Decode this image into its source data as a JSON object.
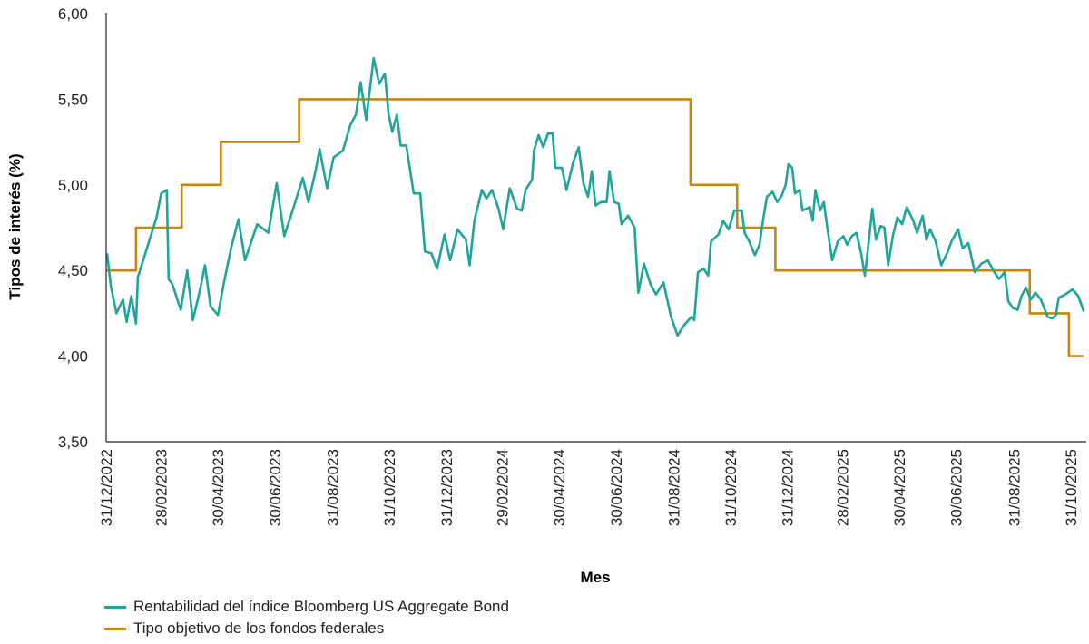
{
  "chart_data": {
    "type": "line",
    "title": "",
    "xlabel": "Mes",
    "ylabel": "Tipos de interés (%)",
    "ylim": [
      3.5,
      6.0
    ],
    "yticks": [
      "3,50",
      "4,00",
      "4,50",
      "5,00",
      "5,50",
      "6,00"
    ],
    "ytick_values": [
      3.5,
      4.0,
      4.5,
      5.0,
      5.5,
      6.0
    ],
    "xlim": [
      "2022-12-31",
      "2025-11-14"
    ],
    "xticks": [
      "31/12/2022",
      "28/02/2023",
      "30/04/2023",
      "30/06/2023",
      "31/08/2023",
      "31/10/2023",
      "31/12/2023",
      "29/02/2024",
      "30/04/2024",
      "30/06/2024",
      "31/08/2024",
      "31/10/2024",
      "31/12/2024",
      "28/02/2025",
      "30/04/2025",
      "30/06/2025",
      "31/08/2025",
      "31/10/2025"
    ],
    "xtick_dates": [
      "2022-12-31",
      "2023-02-28",
      "2023-04-30",
      "2023-06-30",
      "2023-08-31",
      "2023-10-31",
      "2023-12-31",
      "2024-02-29",
      "2024-04-30",
      "2024-06-30",
      "2024-08-31",
      "2024-10-31",
      "2024-12-31",
      "2025-02-28",
      "2025-04-30",
      "2025-06-30",
      "2025-08-31",
      "2025-10-31"
    ],
    "grid": false,
    "legend_position": "bottom-left",
    "series": [
      {
        "name": "Rentabilidad del índice Bloomberg US Aggregate Bond",
        "color": "#1fa59a",
        "step": false,
        "points": [
          [
            "2023-01-01",
            4.6
          ],
          [
            "2023-01-05",
            4.41
          ],
          [
            "2023-01-11",
            4.25
          ],
          [
            "2023-01-18",
            4.33
          ],
          [
            "2023-01-22",
            4.2
          ],
          [
            "2023-01-27",
            4.35
          ],
          [
            "2023-02-01",
            4.19
          ],
          [
            "2023-02-03",
            4.46
          ],
          [
            "2023-02-23",
            4.81
          ],
          [
            "2023-02-28",
            4.95
          ],
          [
            "2023-03-06",
            4.97
          ],
          [
            "2023-03-08",
            4.45
          ],
          [
            "2023-03-12",
            4.42
          ],
          [
            "2023-03-21",
            4.27
          ],
          [
            "2023-03-28",
            4.5
          ],
          [
            "2023-04-03",
            4.21
          ],
          [
            "2023-04-10",
            4.37
          ],
          [
            "2023-04-16",
            4.53
          ],
          [
            "2023-04-22",
            4.29
          ],
          [
            "2023-04-30",
            4.24
          ],
          [
            "2023-05-06",
            4.42
          ],
          [
            "2023-05-14",
            4.63
          ],
          [
            "2023-05-22",
            4.8
          ],
          [
            "2023-05-29",
            4.56
          ],
          [
            "2023-06-11",
            4.77
          ],
          [
            "2023-06-23",
            4.72
          ],
          [
            "2023-07-02",
            5.01
          ],
          [
            "2023-07-10",
            4.7
          ],
          [
            "2023-07-19",
            4.85
          ],
          [
            "2023-07-30",
            5.04
          ],
          [
            "2023-08-05",
            4.9
          ],
          [
            "2023-08-13",
            5.09
          ],
          [
            "2023-08-17",
            5.21
          ],
          [
            "2023-08-25",
            4.98
          ],
          [
            "2023-09-01",
            5.16
          ],
          [
            "2023-09-11",
            5.2
          ],
          [
            "2023-09-19",
            5.35
          ],
          [
            "2023-09-25",
            5.41
          ],
          [
            "2023-09-30",
            5.6
          ],
          [
            "2023-10-06",
            5.38
          ],
          [
            "2023-10-14",
            5.74
          ],
          [
            "2023-10-20",
            5.59
          ],
          [
            "2023-10-26",
            5.65
          ],
          [
            "2023-10-30",
            5.41
          ],
          [
            "2023-11-03",
            5.31
          ],
          [
            "2023-11-08",
            5.41
          ],
          [
            "2023-11-12",
            5.23
          ],
          [
            "2023-11-18",
            5.23
          ],
          [
            "2023-11-26",
            4.95
          ],
          [
            "2023-12-03",
            4.95
          ],
          [
            "2023-12-08",
            4.61
          ],
          [
            "2023-12-15",
            4.6
          ],
          [
            "2023-12-21",
            4.51
          ],
          [
            "2023-12-29",
            4.71
          ],
          [
            "2024-01-04",
            4.56
          ],
          [
            "2024-01-12",
            4.74
          ],
          [
            "2024-01-21",
            4.68
          ],
          [
            "2024-01-25",
            4.53
          ],
          [
            "2024-01-30",
            4.79
          ],
          [
            "2024-02-07",
            4.97
          ],
          [
            "2024-02-12",
            4.92
          ],
          [
            "2024-02-18",
            4.97
          ],
          [
            "2024-02-25",
            4.86
          ],
          [
            "2024-03-01",
            4.74
          ],
          [
            "2024-03-08",
            4.98
          ],
          [
            "2024-03-16",
            4.86
          ],
          [
            "2024-03-21",
            4.85
          ],
          [
            "2024-03-25",
            4.97
          ],
          [
            "2024-04-01",
            5.03
          ],
          [
            "2024-04-03",
            5.2
          ],
          [
            "2024-04-08",
            5.29
          ],
          [
            "2024-04-13",
            5.22
          ],
          [
            "2024-04-18",
            5.3
          ],
          [
            "2024-04-23",
            5.3
          ],
          [
            "2024-04-26",
            5.1
          ],
          [
            "2024-05-03",
            5.1
          ],
          [
            "2024-05-08",
            4.97
          ],
          [
            "2024-05-15",
            5.13
          ],
          [
            "2024-05-21",
            5.22
          ],
          [
            "2024-05-26",
            5.01
          ],
          [
            "2024-05-31",
            4.93
          ],
          [
            "2024-06-04",
            5.08
          ],
          [
            "2024-06-08",
            4.88
          ],
          [
            "2024-06-14",
            4.9
          ],
          [
            "2024-06-20",
            4.9
          ],
          [
            "2024-06-23",
            5.08
          ],
          [
            "2024-06-28",
            4.9
          ],
          [
            "2024-07-03",
            4.89
          ],
          [
            "2024-07-06",
            4.77
          ],
          [
            "2024-07-13",
            4.82
          ],
          [
            "2024-07-20",
            4.75
          ],
          [
            "2024-07-24",
            4.37
          ],
          [
            "2024-07-30",
            4.54
          ],
          [
            "2024-08-06",
            4.42
          ],
          [
            "2024-08-12",
            4.36
          ],
          [
            "2024-08-20",
            4.43
          ],
          [
            "2024-08-28",
            4.23
          ],
          [
            "2024-09-04",
            4.12
          ],
          [
            "2024-09-11",
            4.18
          ],
          [
            "2024-09-19",
            4.23
          ],
          [
            "2024-09-22",
            4.21
          ],
          [
            "2024-09-26",
            4.49
          ],
          [
            "2024-10-02",
            4.51
          ],
          [
            "2024-10-07",
            4.47
          ],
          [
            "2024-10-10",
            4.67
          ],
          [
            "2024-10-18",
            4.71
          ],
          [
            "2024-10-23",
            4.79
          ],
          [
            "2024-10-29",
            4.74
          ],
          [
            "2024-11-04",
            4.85
          ],
          [
            "2024-11-12",
            4.85
          ],
          [
            "2024-11-15",
            4.72
          ],
          [
            "2024-11-20",
            4.67
          ],
          [
            "2024-11-26",
            4.59
          ],
          [
            "2024-12-01",
            4.65
          ],
          [
            "2024-12-05",
            4.8
          ],
          [
            "2024-12-09",
            4.93
          ],
          [
            "2024-12-15",
            4.96
          ],
          [
            "2024-12-20",
            4.9
          ],
          [
            "2024-12-25",
            4.94
          ],
          [
            "2024-12-29",
            5.0
          ],
          [
            "2025-01-01",
            5.12
          ],
          [
            "2025-01-05",
            5.1
          ],
          [
            "2025-01-08",
            4.95
          ],
          [
            "2025-01-13",
            4.97
          ],
          [
            "2025-01-16",
            4.85
          ],
          [
            "2025-01-24",
            4.87
          ],
          [
            "2025-01-27",
            4.79
          ],
          [
            "2025-01-30",
            4.97
          ],
          [
            "2025-02-04",
            4.85
          ],
          [
            "2025-02-08",
            4.9
          ],
          [
            "2025-02-12",
            4.74
          ],
          [
            "2025-02-17",
            4.56
          ],
          [
            "2025-02-23",
            4.67
          ],
          [
            "2025-03-01",
            4.7
          ],
          [
            "2025-03-05",
            4.65
          ],
          [
            "2025-03-10",
            4.7
          ],
          [
            "2025-03-15",
            4.72
          ],
          [
            "2025-03-20",
            4.6
          ],
          [
            "2025-03-24",
            4.47
          ],
          [
            "2025-03-27",
            4.61
          ],
          [
            "2025-04-01",
            4.86
          ],
          [
            "2025-04-05",
            4.68
          ],
          [
            "2025-04-10",
            4.76
          ],
          [
            "2025-04-14",
            4.75
          ],
          [
            "2025-04-18",
            4.53
          ],
          [
            "2025-04-23",
            4.7
          ],
          [
            "2025-04-28",
            4.81
          ],
          [
            "2025-05-03",
            4.77
          ],
          [
            "2025-05-08",
            4.87
          ],
          [
            "2025-05-15",
            4.79
          ],
          [
            "2025-05-19",
            4.72
          ],
          [
            "2025-05-25",
            4.82
          ],
          [
            "2025-05-29",
            4.68
          ],
          [
            "2025-06-02",
            4.74
          ],
          [
            "2025-06-08",
            4.67
          ],
          [
            "2025-06-14",
            4.53
          ],
          [
            "2025-06-21",
            4.61
          ],
          [
            "2025-06-25",
            4.67
          ],
          [
            "2025-07-02",
            4.74
          ],
          [
            "2025-07-07",
            4.63
          ],
          [
            "2025-07-13",
            4.66
          ],
          [
            "2025-07-20",
            4.49
          ],
          [
            "2025-07-27",
            4.54
          ],
          [
            "2025-08-03",
            4.56
          ],
          [
            "2025-08-10",
            4.49
          ],
          [
            "2025-08-15",
            4.45
          ],
          [
            "2025-08-21",
            4.49
          ],
          [
            "2025-08-25",
            4.32
          ],
          [
            "2025-08-30",
            4.28
          ],
          [
            "2025-09-04",
            4.27
          ],
          [
            "2025-09-08",
            4.35
          ],
          [
            "2025-09-13",
            4.4
          ],
          [
            "2025-09-18",
            4.33
          ],
          [
            "2025-09-23",
            4.37
          ],
          [
            "2025-09-29",
            4.33
          ],
          [
            "2025-10-06",
            4.23
          ],
          [
            "2025-10-11",
            4.22
          ],
          [
            "2025-10-15",
            4.24
          ],
          [
            "2025-10-18",
            4.34
          ],
          [
            "2025-10-25",
            4.36
          ],
          [
            "2025-11-02",
            4.39
          ],
          [
            "2025-11-08",
            4.35
          ],
          [
            "2025-11-14",
            4.26
          ]
        ]
      },
      {
        "name": "Tipo objetivo de los fondos federales",
        "color": "#c8860a",
        "step": true,
        "points": [
          [
            "2022-12-31",
            4.5
          ],
          [
            "2023-02-01",
            4.75
          ],
          [
            "2023-03-22",
            5.0
          ],
          [
            "2023-05-03",
            5.25
          ],
          [
            "2023-07-26",
            5.5
          ],
          [
            "2024-09-18",
            5.0
          ],
          [
            "2024-11-07",
            4.75
          ],
          [
            "2024-12-18",
            4.5
          ],
          [
            "2025-09-17",
            4.25
          ],
          [
            "2025-10-29",
            4.0
          ],
          [
            "2025-11-14",
            4.0
          ]
        ]
      }
    ]
  }
}
